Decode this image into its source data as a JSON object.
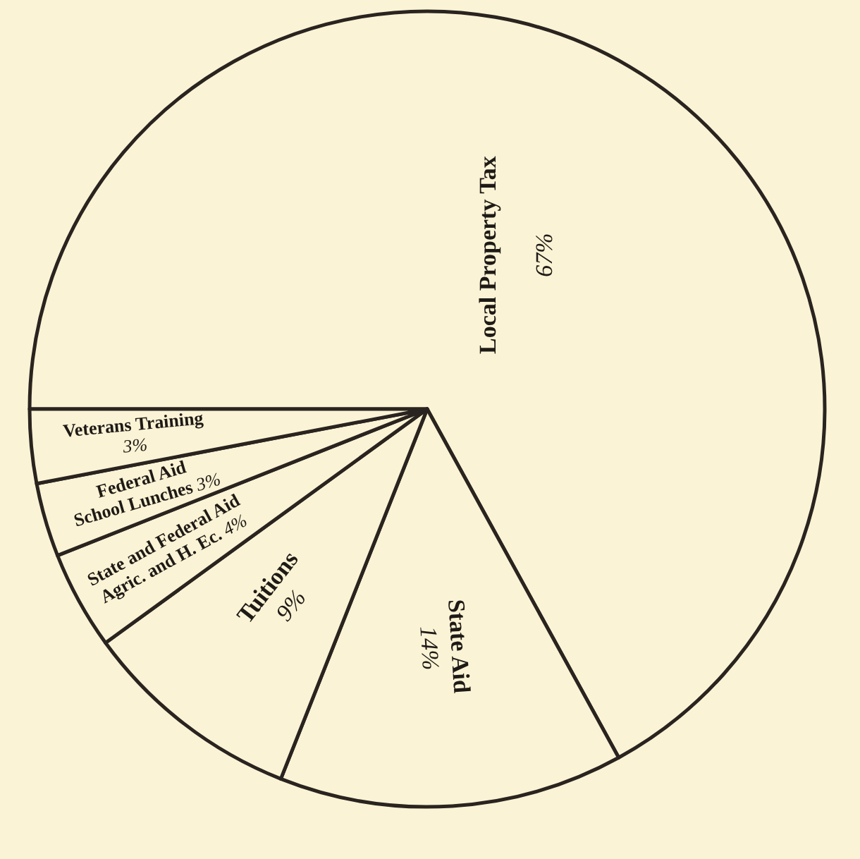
{
  "chart_data": {
    "type": "pie",
    "categories": [
      "Local Property Tax",
      "State Aid",
      "Tuitions",
      "State and Federal Aid Agric. and H. Ec.",
      "Federal Aid School Lunches",
      "Veterans Training"
    ],
    "values": [
      67,
      14,
      9,
      4,
      3,
      3
    ],
    "value_labels": [
      "67%",
      "14%",
      "9%",
      "4%",
      "3%",
      "3%"
    ],
    "colors": [
      "#fbf3d5",
      "#fbf3d5",
      "#fbf3d5",
      "#fbf3d5",
      "#fbf3d5",
      "#fbf3d5"
    ]
  }
}
